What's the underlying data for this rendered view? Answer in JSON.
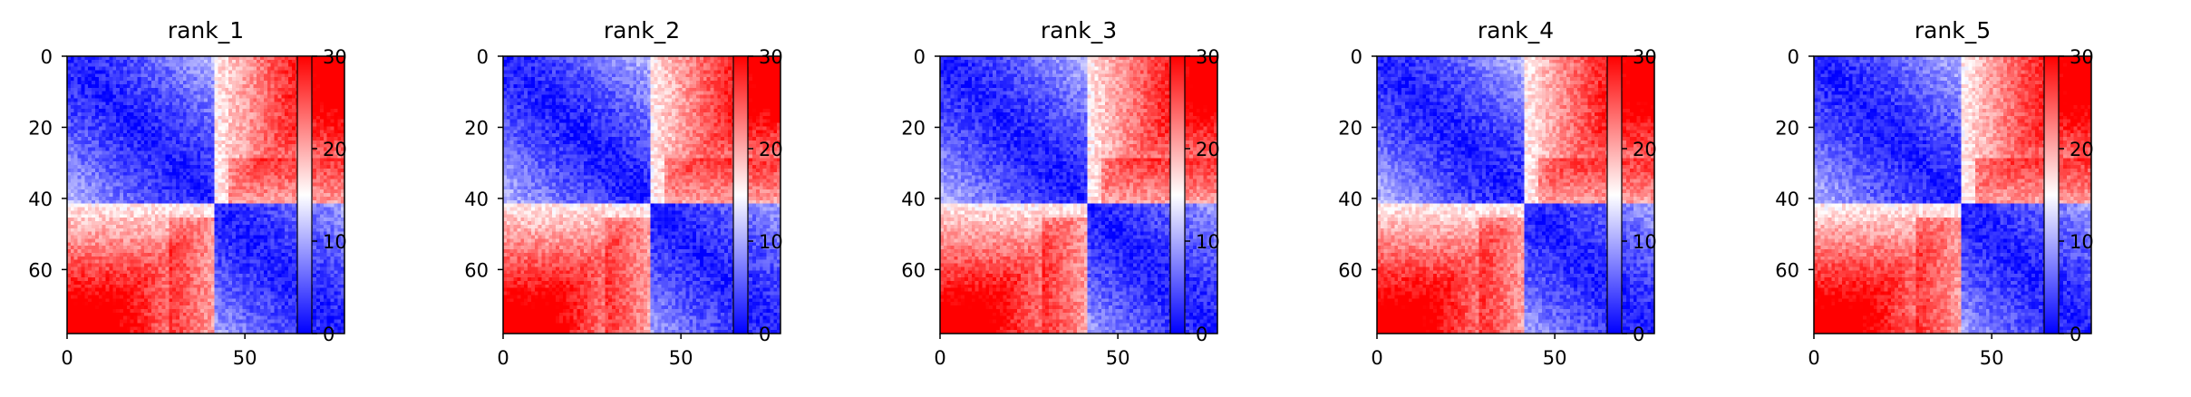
{
  "chart_data": [
    {
      "type": "heatmap",
      "title": "rank_1",
      "n": 79,
      "x_ticks": [
        "0",
        "50"
      ],
      "y_ticks": [
        "0",
        "20",
        "40",
        "60"
      ],
      "colorbar": {
        "ticks": [
          "0",
          "10",
          "20",
          "30"
        ],
        "range": [
          0,
          30
        ],
        "colors": [
          "#0000ff",
          "#ffffff",
          "#ff0000"
        ]
      },
      "domain_boundary": 42
    },
    {
      "type": "heatmap",
      "title": "rank_2",
      "n": 79,
      "x_ticks": [
        "0",
        "50"
      ],
      "y_ticks": [
        "0",
        "20",
        "40",
        "60"
      ],
      "colorbar": {
        "ticks": [
          "0",
          "10",
          "20",
          "30"
        ],
        "range": [
          0,
          30
        ],
        "colors": [
          "#0000ff",
          "#ffffff",
          "#ff0000"
        ]
      },
      "domain_boundary": 42
    },
    {
      "type": "heatmap",
      "title": "rank_3",
      "n": 79,
      "x_ticks": [
        "0",
        "50"
      ],
      "y_ticks": [
        "0",
        "20",
        "40",
        "60"
      ],
      "colorbar": {
        "ticks": [
          "0",
          "10",
          "20",
          "30"
        ],
        "range": [
          0,
          30
        ],
        "colors": [
          "#0000ff",
          "#ffffff",
          "#ff0000"
        ]
      },
      "domain_boundary": 42
    },
    {
      "type": "heatmap",
      "title": "rank_4",
      "n": 79,
      "x_ticks": [
        "0",
        "50"
      ],
      "y_ticks": [
        "0",
        "20",
        "40",
        "60"
      ],
      "colorbar": {
        "ticks": [
          "0",
          "10",
          "20",
          "30"
        ],
        "range": [
          0,
          30
        ],
        "colors": [
          "#0000ff",
          "#ffffff",
          "#ff0000"
        ]
      },
      "domain_boundary": 42
    },
    {
      "type": "heatmap",
      "title": "rank_5",
      "n": 79,
      "x_ticks": [
        "0",
        "50"
      ],
      "y_ticks": [
        "0",
        "20",
        "40",
        "60"
      ],
      "colorbar": {
        "ticks": [
          "0",
          "10",
          "20",
          "30"
        ],
        "range": [
          0,
          30
        ],
        "colors": [
          "#0000ff",
          "#ffffff",
          "#ff0000"
        ]
      },
      "domain_boundary": 42
    }
  ]
}
